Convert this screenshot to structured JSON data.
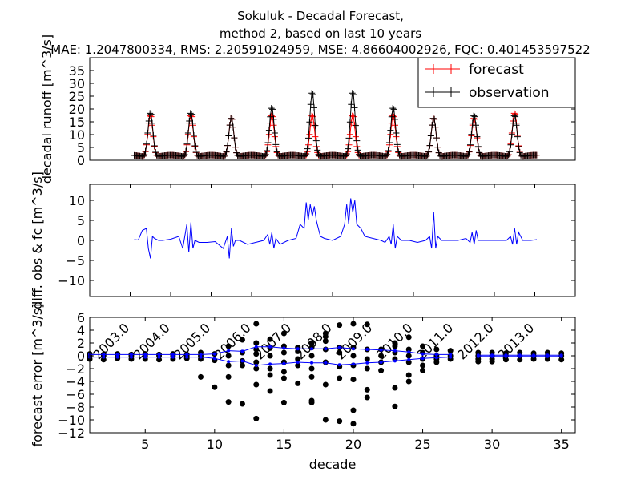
{
  "chart_data": [
    {
      "type": "line",
      "title_lines": [
        "Sokuluk  - Decadal Forecast,",
        "method 2, based on last 10 years",
        "MAE: 1.2047800334,   RMS: 2.20591024959,   MSE: 4.86604002926,   FQC: 0.401453597522"
      ],
      "ylabel": "decadal runoff [m^3/s]",
      "ylim": [
        0,
        40
      ],
      "yticks": [
        "0",
        "5",
        "10",
        "15",
        "20",
        "25",
        "30",
        "35"
      ],
      "x_range": [
        2002.0,
        2014.0
      ],
      "legend": {
        "placement": "top-right",
        "entries": [
          "forecast",
          "observation"
        ]
      },
      "colors": {
        "forecast": "#ff0000",
        "observation": "#000000"
      },
      "peaks": [
        {
          "year": 2003.5,
          "forecast": 18,
          "observation": 19
        },
        {
          "year": 2004.5,
          "forecast": 18,
          "observation": 19
        },
        {
          "year": 2005.5,
          "forecast": 17,
          "observation": 17
        },
        {
          "year": 2006.5,
          "forecast": 18,
          "observation": 21
        },
        {
          "year": 2007.5,
          "forecast": 18,
          "observation": 27
        },
        {
          "year": 2008.5,
          "forecast": 18,
          "observation": 27
        },
        {
          "year": 2009.5,
          "forecast": 18,
          "observation": 21
        },
        {
          "year": 2010.5,
          "forecast": 17,
          "observation": 17
        },
        {
          "year": 2011.5,
          "forecast": 17,
          "observation": 18
        },
        {
          "year": 2012.5,
          "forecast": 19,
          "observation": 18
        }
      ],
      "series_start": 2003.1,
      "series_end": 2013.05,
      "base_flow": 1.6
    },
    {
      "type": "line",
      "ylabel": "diff. obs & fc [m^3/s]",
      "ylim": [
        -14,
        14
      ],
      "yticks": [
        "10",
        "5",
        "0",
        "−5",
        "−10"
      ],
      "xticks": [
        "2003.0",
        "2004.0",
        "2005.0",
        "2006.0",
        "2007.0",
        "2008.0",
        "2009.0",
        "2010.0",
        "2011.0",
        "2012.0",
        "2013.0"
      ],
      "x_range": [
        2002.0,
        2014.0
      ],
      "color": "#0000ff",
      "series": [
        {
          "name": "",
          "x": [
            2003.1,
            2003.2,
            2003.3,
            2003.4,
            2003.45,
            2003.5,
            2003.55,
            2003.6,
            2003.7,
            2003.8,
            2004.0,
            2004.2,
            2004.3,
            2004.4,
            2004.45,
            2004.5,
            2004.55,
            2004.6,
            2004.7,
            2004.9,
            2005.1,
            2005.3,
            2005.4,
            2005.45,
            2005.5,
            2005.55,
            2005.6,
            2005.7,
            2005.9,
            2006.1,
            2006.3,
            2006.4,
            2006.45,
            2006.5,
            2006.55,
            2006.6,
            2006.7,
            2006.9,
            2007.1,
            2007.2,
            2007.3,
            2007.35,
            2007.4,
            2007.45,
            2007.5,
            2007.55,
            2007.6,
            2007.65,
            2007.7,
            2007.8,
            2008.0,
            2008.2,
            2008.3,
            2008.35,
            2008.4,
            2008.45,
            2008.5,
            2008.55,
            2008.6,
            2008.7,
            2008.8,
            2009.0,
            2009.2,
            2009.3,
            2009.4,
            2009.45,
            2009.5,
            2009.55,
            2009.6,
            2009.7,
            2009.9,
            2010.1,
            2010.3,
            2010.4,
            2010.45,
            2010.5,
            2010.55,
            2010.6,
            2010.7,
            2010.9,
            2011.1,
            2011.3,
            2011.4,
            2011.45,
            2011.5,
            2011.55,
            2011.6,
            2011.7,
            2011.9,
            2012.1,
            2012.3,
            2012.4,
            2012.45,
            2012.5,
            2012.55,
            2012.6,
            2012.7,
            2012.9,
            2013.05
          ],
          "y": [
            0.2,
            0.1,
            2.5,
            3,
            -2,
            -4.5,
            1,
            0.5,
            0,
            0,
            0.3,
            1,
            -2,
            4,
            -3,
            4.5,
            -2,
            0,
            -0.5,
            -0.5,
            -0.3,
            -2,
            1,
            -4.5,
            3,
            -1.5,
            0,
            0,
            -1,
            -0.5,
            0,
            1.5,
            -1,
            2,
            -2,
            0.5,
            -1,
            0,
            0.5,
            4,
            3,
            9.5,
            5,
            9,
            6,
            8.5,
            5,
            3,
            1,
            0.5,
            0,
            1,
            4,
            9,
            4,
            10.5,
            7,
            10,
            4,
            3,
            1,
            0.5,
            0,
            -0.5,
            1,
            -1,
            4,
            -2,
            1,
            0,
            0,
            -0.5,
            0,
            1,
            -2,
            7,
            -2,
            1,
            0,
            0,
            0,
            0.5,
            -0.5,
            2,
            -1,
            2.5,
            0,
            0,
            0,
            0,
            0,
            1,
            -1,
            3,
            -1,
            2,
            0,
            0,
            0.2
          ]
        }
      ]
    },
    {
      "type": "scatter",
      "xlabel": "decade",
      "ylabel": "forecast error [m^3/s]",
      "xlim": [
        1,
        36
      ],
      "ylim": [
        -12,
        6
      ],
      "xticks": [
        "5",
        "10",
        "15",
        "20",
        "25",
        "30",
        "35"
      ],
      "yticks": [
        "6",
        "4",
        "2",
        "0",
        "−2",
        "−4",
        "−6",
        "−8",
        "−10",
        "−12"
      ],
      "colors": {
        "points": "#000000",
        "band": "#0000ff"
      },
      "points": [
        [
          1,
          0
        ],
        [
          1,
          -0.5
        ],
        [
          1,
          0.3
        ],
        [
          2,
          0
        ],
        [
          2,
          -0.6
        ],
        [
          2,
          0.2
        ],
        [
          3,
          0
        ],
        [
          3,
          -0.4
        ],
        [
          3,
          0.3
        ],
        [
          4,
          0
        ],
        [
          4,
          -0.5
        ],
        [
          4,
          0.2
        ],
        [
          5,
          0
        ],
        [
          5,
          -0.5
        ],
        [
          5,
          0.3
        ],
        [
          6,
          0
        ],
        [
          6,
          -0.6
        ],
        [
          6,
          0.2
        ],
        [
          7,
          0
        ],
        [
          7,
          -0.5
        ],
        [
          7,
          0.3
        ],
        [
          8,
          0
        ],
        [
          8,
          -0.4
        ],
        [
          8,
          0.2
        ],
        [
          9,
          0.5
        ],
        [
          9,
          -0.5
        ],
        [
          9,
          -3.3
        ],
        [
          9,
          0
        ],
        [
          10,
          -4.9
        ],
        [
          10,
          0.3
        ],
        [
          10,
          -0.7
        ],
        [
          11,
          1.5
        ],
        [
          11,
          -1.5
        ],
        [
          11,
          -3.3
        ],
        [
          11,
          -7.2
        ],
        [
          11,
          0
        ],
        [
          12,
          2.5
        ],
        [
          12,
          -0.8
        ],
        [
          12,
          -7.5
        ],
        [
          12,
          -1.5
        ],
        [
          12,
          0.5
        ],
        [
          13,
          5
        ],
        [
          13,
          2
        ],
        [
          13,
          1
        ],
        [
          13,
          -1
        ],
        [
          13,
          -2
        ],
        [
          13,
          -4.5
        ],
        [
          13,
          -9.8
        ],
        [
          13,
          0.3
        ],
        [
          14,
          2.6
        ],
        [
          14,
          1.2
        ],
        [
          14,
          0
        ],
        [
          14,
          -2
        ],
        [
          14,
          -3
        ],
        [
          14,
          -5.5
        ],
        [
          15,
          3.5
        ],
        [
          15,
          1.5
        ],
        [
          15,
          0.5
        ],
        [
          15,
          -1
        ],
        [
          15,
          -2.5
        ],
        [
          15,
          -3.5
        ],
        [
          15,
          -7.3
        ],
        [
          16,
          1.3
        ],
        [
          16,
          0.7
        ],
        [
          16,
          -0.5
        ],
        [
          16,
          -1.5
        ],
        [
          16,
          -4.3
        ],
        [
          17,
          2
        ],
        [
          17,
          1.3
        ],
        [
          17,
          0
        ],
        [
          17,
          -2
        ],
        [
          17,
          -3.3
        ],
        [
          17,
          -7
        ],
        [
          17,
          -7.3
        ],
        [
          18,
          3.5
        ],
        [
          18,
          2.3
        ],
        [
          18,
          1
        ],
        [
          18,
          -1
        ],
        [
          18,
          -4.5
        ],
        [
          18,
          -10
        ],
        [
          18,
          3
        ],
        [
          19,
          1.3
        ],
        [
          19,
          0.5
        ],
        [
          19,
          -1.7
        ],
        [
          19,
          -3.5
        ],
        [
          19,
          -10.2
        ],
        [
          19,
          4.8
        ],
        [
          20,
          5
        ],
        [
          20,
          1.3
        ],
        [
          20,
          0
        ],
        [
          20,
          -1.5
        ],
        [
          20,
          -3.7
        ],
        [
          20,
          -8.5
        ],
        [
          20,
          -10.6
        ],
        [
          21,
          4.9
        ],
        [
          21,
          1
        ],
        [
          21,
          -0.5
        ],
        [
          21,
          -2
        ],
        [
          21,
          -5.3
        ],
        [
          21,
          -6.5
        ],
        [
          22,
          1
        ],
        [
          22,
          0
        ],
        [
          22,
          -1
        ],
        [
          22,
          -2.3
        ],
        [
          23,
          2
        ],
        [
          23,
          1.5
        ],
        [
          23,
          0.5
        ],
        [
          23,
          -0.5
        ],
        [
          23,
          -5
        ],
        [
          23,
          -7.9
        ],
        [
          24,
          2.9
        ],
        [
          24,
          1
        ],
        [
          24,
          0
        ],
        [
          24,
          -1
        ],
        [
          24,
          -3
        ],
        [
          24,
          -4
        ],
        [
          25,
          1.5
        ],
        [
          25,
          0.5
        ],
        [
          25,
          -0.5
        ],
        [
          25,
          -1.5
        ],
        [
          25,
          -2.3
        ],
        [
          26,
          1
        ],
        [
          26,
          0
        ],
        [
          26,
          -0.5
        ],
        [
          26,
          -1
        ],
        [
          27,
          0.8
        ],
        [
          27,
          0
        ],
        [
          27,
          -0.5
        ],
        [
          29,
          0.5
        ],
        [
          29,
          0
        ],
        [
          29,
          -0.5
        ],
        [
          29,
          -0.9
        ],
        [
          30,
          0.5
        ],
        [
          30,
          0
        ],
        [
          30,
          -0.5
        ],
        [
          30,
          -0.9
        ],
        [
          31,
          0.4
        ],
        [
          31,
          0
        ],
        [
          31,
          -0.6
        ],
        [
          32,
          0.5
        ],
        [
          32,
          0
        ],
        [
          32,
          -0.6
        ],
        [
          33,
          0.4
        ],
        [
          33,
          0
        ],
        [
          33,
          -0.5
        ],
        [
          34,
          0.5
        ],
        [
          34,
          0
        ],
        [
          34,
          -0.5
        ],
        [
          35,
          0.4
        ],
        [
          35,
          0
        ],
        [
          35,
          -0.6
        ]
      ],
      "band_upper": [
        [
          1,
          0.2
        ],
        [
          2,
          0.2
        ],
        [
          3,
          0.2
        ],
        [
          4,
          0.2
        ],
        [
          5,
          0.2
        ],
        [
          6,
          0.2
        ],
        [
          7,
          0.2
        ],
        [
          8,
          0.2
        ],
        [
          9,
          0.2
        ],
        [
          10,
          0.3
        ],
        [
          11,
          0.8
        ],
        [
          12,
          0.7
        ],
        [
          13,
          1.4
        ],
        [
          14,
          1.4
        ],
        [
          15,
          1.2
        ],
        [
          16,
          1.1
        ],
        [
          17,
          1.1
        ],
        [
          18,
          1.1
        ],
        [
          19,
          1.3
        ],
        [
          20,
          1.1
        ],
        [
          21,
          1.0
        ],
        [
          22,
          0.9
        ],
        [
          23,
          0.8
        ],
        [
          24,
          0.6
        ],
        [
          25,
          0.3
        ],
        [
          26,
          0.2
        ],
        [
          27,
          0.2
        ],
        [
          29,
          0.1
        ],
        [
          30,
          0.1
        ],
        [
          31,
          0.1
        ],
        [
          32,
          0.1
        ],
        [
          33,
          0.1
        ],
        [
          34,
          0.1
        ],
        [
          35,
          0.1
        ]
      ],
      "band_lower": [
        [
          1,
          -0.2
        ],
        [
          2,
          -0.2
        ],
        [
          3,
          -0.2
        ],
        [
          4,
          -0.2
        ],
        [
          5,
          -0.2
        ],
        [
          6,
          -0.2
        ],
        [
          7,
          -0.2
        ],
        [
          8,
          -0.2
        ],
        [
          9,
          -0.2
        ],
        [
          10,
          -0.4
        ],
        [
          11,
          -0.9
        ],
        [
          12,
          -0.8
        ],
        [
          13,
          -1.5
        ],
        [
          14,
          -1.3
        ],
        [
          15,
          -1.2
        ],
        [
          16,
          -1.0
        ],
        [
          17,
          -1.1
        ],
        [
          18,
          -1.1
        ],
        [
          19,
          -1.4
        ],
        [
          20,
          -1.3
        ],
        [
          21,
          -1.1
        ],
        [
          22,
          -1.0
        ],
        [
          23,
          -0.8
        ],
        [
          24,
          -0.6
        ],
        [
          25,
          -0.4
        ],
        [
          26,
          -0.3
        ],
        [
          27,
          -0.2
        ],
        [
          29,
          -0.1
        ],
        [
          30,
          -0.1
        ],
        [
          31,
          -0.1
        ],
        [
          32,
          -0.1
        ],
        [
          33,
          -0.1
        ],
        [
          34,
          -0.1
        ],
        [
          35,
          -0.1
        ]
      ]
    }
  ]
}
